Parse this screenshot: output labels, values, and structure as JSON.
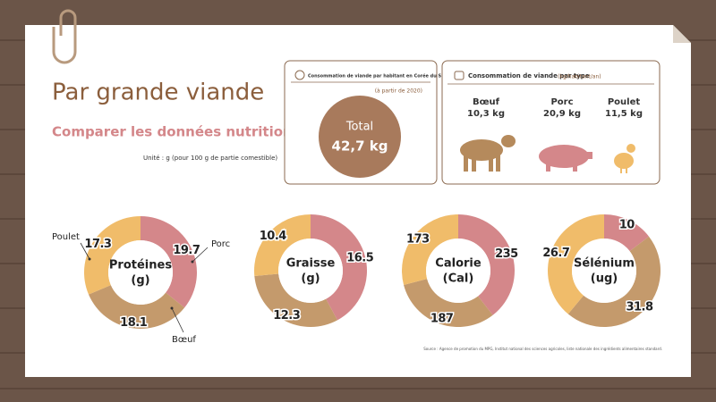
{
  "header": {
    "title": "Par grande viande",
    "subtitle": "Comparer les données nutritionnelles",
    "unit_note": "Unité : g (pour 100 g de partie comestible)"
  },
  "consumption_total": {
    "title": "Consommation de viande par habitant en Corée du Sud",
    "period": "(à partir de 2020)",
    "label": "Total",
    "value": "42,7 kg"
  },
  "consumption_by_type": {
    "title": "Consommation de viande par type",
    "unit": "(kg/habitant/an)",
    "items": [
      {
        "name": "Bœuf",
        "value": "10,3 kg"
      },
      {
        "name": "Porc",
        "value": "20,9 kg"
      },
      {
        "name": "Poulet",
        "value": "11,5 kg"
      }
    ]
  },
  "chart_data": [
    {
      "type": "pie",
      "title": "Protéines",
      "unit": "(g)",
      "categories": [
        "Porc",
        "Bœuf",
        "Poulet"
      ],
      "values": [
        19.7,
        18.1,
        17.3
      ],
      "colors": [
        "#d4878a",
        "#c49a6c",
        "#f0bc6a"
      ]
    },
    {
      "type": "pie",
      "title": "Graisse",
      "unit": "(g)",
      "values": [
        16.5,
        12.3,
        10.4
      ],
      "colors": [
        "#d4878a",
        "#c49a6c",
        "#f0bc6a"
      ]
    },
    {
      "type": "pie",
      "title": "Calorie",
      "unit": "(Cal)",
      "values": [
        235,
        187,
        173
      ],
      "colors": [
        "#d4878a",
        "#c49a6c",
        "#f0bc6a"
      ]
    },
    {
      "type": "pie",
      "title": "Sélénium",
      "unit": "(ug)",
      "values": [
        10,
        31.8,
        26.7
      ],
      "colors": [
        "#d4878a",
        "#c49a6c",
        "#f0bc6a"
      ]
    }
  ],
  "source": "Source : Agence de promotion du MPG, Institut national des sciences agricoles, liste nationale des ingrédients alimentaires standard."
}
